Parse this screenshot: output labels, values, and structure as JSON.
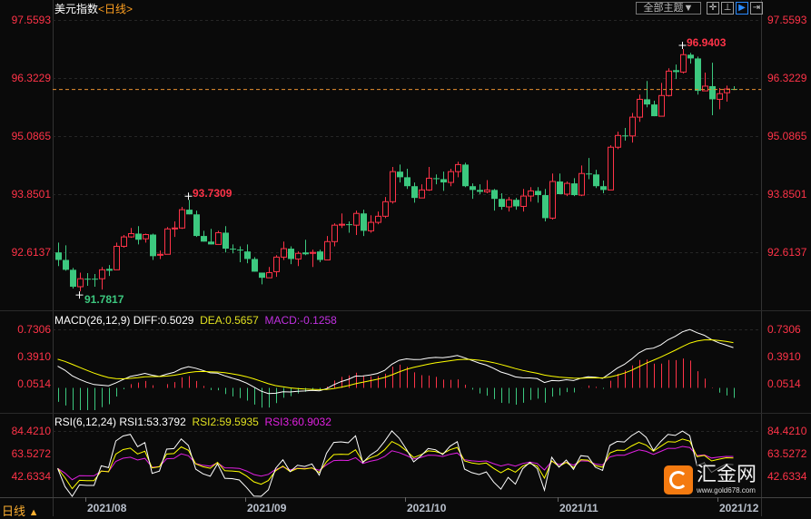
{
  "header": {
    "title": "美元指数",
    "period": "<日线>"
  },
  "toolbar": {
    "theme_label": "全部主题",
    "theme_arrow": "▼",
    "buttons": [
      "crosshair-icon",
      "range-icon",
      "play-icon",
      "exit-icon"
    ]
  },
  "price_axis": {
    "labels": [
      "97.5593",
      "96.3229",
      "95.0865",
      "93.8501",
      "92.6137"
    ]
  },
  "annotations": {
    "high": "96.9403",
    "mid_high": "93.7309",
    "low": "91.7817"
  },
  "macd": {
    "title": "MACD(26,12,9)",
    "diff": "DIFF:0.5029",
    "dea": "DEA:0.5657",
    "macd": "MACD:-0.1258",
    "axis_labels": [
      "0.7306",
      "0.3910",
      "0.0514"
    ]
  },
  "rsi": {
    "title": "RSI(6,12,24)",
    "rsi1": "RSI1:53.3792",
    "rsi2": "RSI2:59.5935",
    "rsi3": "RSI3:60.9032",
    "axis_labels": [
      "84.4210",
      "63.5272",
      "42.6334"
    ]
  },
  "period_selector": {
    "label": "日线",
    "arrow": "▲"
  },
  "logo": {
    "name": "汇金网",
    "url": "www.gold678.com"
  },
  "colors": {
    "up": "#ff3348",
    "down": "#3cc87f",
    "diff": "#ffffff",
    "dea": "#ffff00",
    "rsi1": "#ffffff",
    "rsi2": "#ffff00",
    "rsi3": "#e020e0",
    "accent": "#ffa020",
    "logo": "#f47a10"
  },
  "chart_data": {
    "type": "candlestick",
    "ylim": [
      91.5,
      97.5593
    ],
    "time_labels": [
      {
        "label": "2021/08",
        "index": 4
      },
      {
        "label": "2021/09",
        "index": 26
      },
      {
        "label": "2021/10",
        "index": 48
      },
      {
        "label": "2021/11",
        "index": 69
      },
      {
        "label": "2021/12",
        "index": 91
      }
    ],
    "ohlc": [
      [
        92.61,
        92.82,
        92.32,
        92.45
      ],
      [
        92.45,
        92.76,
        92.22,
        92.24
      ],
      [
        92.24,
        92.28,
        91.84,
        91.88
      ],
      [
        91.88,
        92.18,
        91.78,
        92.05
      ],
      [
        92.05,
        92.17,
        91.9,
        92.04
      ],
      [
        92.05,
        92.15,
        91.88,
        92.04
      ],
      [
        92.05,
        92.3,
        91.82,
        92.24
      ],
      [
        92.26,
        92.34,
        92.11,
        92.22
      ],
      [
        92.24,
        92.82,
        92.24,
        92.74
      ],
      [
        92.74,
        92.98,
        92.71,
        92.94
      ],
      [
        92.94,
        93.13,
        92.92,
        93.01
      ],
      [
        93.01,
        93.17,
        92.78,
        92.88
      ],
      [
        92.9,
        93.01,
        92.82,
        92.99
      ],
      [
        92.99,
        93.01,
        92.45,
        92.53
      ],
      [
        92.55,
        92.65,
        92.47,
        92.57
      ],
      [
        92.57,
        93.15,
        92.57,
        93.11
      ],
      [
        93.11,
        93.27,
        92.94,
        93.13
      ],
      [
        93.13,
        93.58,
        93.11,
        93.52
      ],
      [
        93.52,
        93.73,
        93.42,
        93.42
      ],
      [
        93.42,
        93.5,
        92.94,
        92.96
      ],
      [
        92.96,
        93.07,
        92.84,
        92.84
      ],
      [
        92.84,
        93.11,
        92.78,
        92.78
      ],
      [
        92.78,
        93.07,
        92.78,
        93.03
      ],
      [
        93.03,
        93.17,
        92.61,
        92.69
      ],
      [
        92.69,
        92.78,
        92.59,
        92.68
      ],
      [
        92.67,
        92.74,
        92.4,
        92.65
      ],
      [
        92.63,
        92.78,
        92.38,
        92.47
      ],
      [
        92.47,
        92.51,
        92.2,
        92.2
      ],
      [
        92.18,
        92.18,
        91.93,
        92.07
      ],
      [
        92.07,
        92.3,
        92.07,
        92.18
      ],
      [
        92.2,
        92.55,
        92.09,
        92.51
      ],
      [
        92.51,
        92.84,
        92.45,
        92.69
      ],
      [
        92.69,
        92.74,
        92.36,
        92.47
      ],
      [
        92.47,
        92.63,
        92.32,
        92.59
      ],
      [
        92.61,
        92.88,
        92.55,
        92.57
      ],
      [
        92.59,
        92.67,
        92.3,
        92.61
      ],
      [
        92.63,
        92.67,
        92.4,
        92.45
      ],
      [
        92.45,
        92.96,
        92.44,
        92.84
      ],
      [
        92.84,
        93.23,
        92.74,
        93.19
      ],
      [
        93.19,
        93.44,
        93.13,
        93.21
      ],
      [
        93.21,
        93.27,
        93.03,
        93.2
      ],
      [
        93.19,
        93.5,
        92.98,
        93.44
      ],
      [
        93.44,
        93.52,
        92.96,
        93.07
      ],
      [
        93.07,
        93.4,
        93.03,
        93.25
      ],
      [
        93.25,
        93.48,
        93.21,
        93.38
      ],
      [
        93.38,
        93.79,
        93.34,
        93.69
      ],
      [
        93.69,
        94.43,
        93.65,
        94.33
      ],
      [
        94.33,
        94.48,
        94.1,
        94.21
      ],
      [
        94.21,
        94.39,
        93.96,
        94.02
      ],
      [
        94.02,
        94.1,
        93.67,
        93.77
      ],
      [
        93.77,
        94.06,
        93.77,
        93.94
      ],
      [
        93.94,
        94.43,
        93.92,
        94.19
      ],
      [
        94.19,
        94.27,
        94.06,
        94.17
      ],
      [
        94.17,
        94.33,
        93.92,
        94.1
      ],
      [
        94.1,
        94.39,
        94.02,
        94.33
      ],
      [
        94.33,
        94.54,
        94.21,
        94.48
      ],
      [
        94.48,
        94.52,
        94.0,
        94.02
      ],
      [
        94.02,
        94.08,
        93.75,
        93.94
      ],
      [
        93.94,
        94.06,
        93.85,
        93.9
      ],
      [
        93.9,
        94.15,
        93.87,
        93.94
      ],
      [
        93.94,
        93.96,
        93.5,
        93.75
      ],
      [
        93.75,
        93.87,
        93.52,
        93.58
      ],
      [
        93.58,
        93.79,
        93.48,
        93.73
      ],
      [
        93.73,
        93.77,
        93.52,
        93.59
      ],
      [
        93.59,
        93.96,
        93.48,
        93.81
      ],
      [
        93.81,
        94.0,
        93.69,
        93.92
      ],
      [
        93.92,
        94.0,
        93.67,
        93.83
      ],
      [
        93.83,
        93.96,
        93.27,
        93.34
      ],
      [
        93.34,
        94.29,
        93.31,
        94.12
      ],
      [
        94.12,
        94.29,
        93.85,
        93.85
      ],
      [
        93.85,
        94.12,
        93.81,
        94.08
      ],
      [
        94.08,
        94.19,
        93.81,
        93.83
      ],
      [
        93.83,
        94.46,
        93.81,
        94.29
      ],
      [
        94.29,
        94.62,
        94.17,
        94.27
      ],
      [
        94.27,
        94.37,
        93.98,
        94.02
      ],
      [
        94.02,
        94.14,
        93.87,
        93.94
      ],
      [
        93.94,
        94.89,
        93.94,
        94.85
      ],
      [
        94.85,
        95.18,
        94.81,
        95.1
      ],
      [
        95.1,
        95.26,
        94.99,
        95.09
      ],
      [
        95.09,
        95.58,
        94.95,
        95.49
      ],
      [
        95.49,
        95.97,
        95.39,
        95.87
      ],
      [
        95.87,
        96.26,
        95.7,
        95.76
      ],
      [
        95.76,
        95.84,
        95.51,
        95.51
      ],
      [
        95.51,
        96.22,
        95.51,
        95.95
      ],
      [
        95.95,
        96.53,
        95.93,
        96.47
      ],
      [
        96.49,
        96.61,
        96.3,
        96.45
      ],
      [
        96.45,
        96.94,
        96.42,
        96.82
      ],
      [
        96.82,
        96.86,
        96.63,
        96.74
      ],
      [
        96.74,
        96.78,
        95.97,
        96.05
      ],
      [
        96.05,
        96.44,
        96.05,
        96.15
      ],
      [
        96.15,
        96.65,
        95.53,
        95.87
      ],
      [
        95.87,
        96.11,
        95.66,
        95.99
      ],
      [
        96.01,
        96.16,
        95.82,
        96.09
      ],
      [
        96.09,
        96.15,
        96.07,
        96.08
      ]
    ]
  }
}
